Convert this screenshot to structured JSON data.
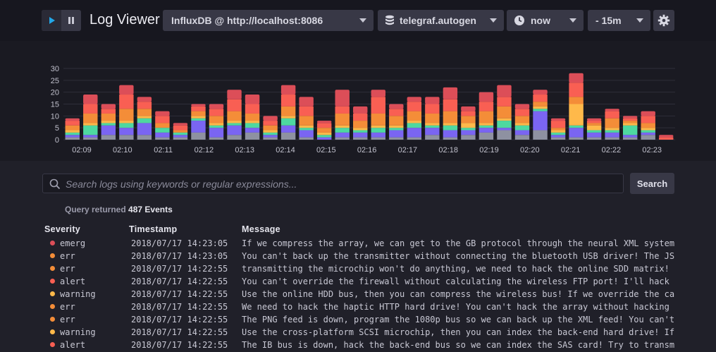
{
  "app": {
    "title": "Log Viewer"
  },
  "toolbar": {
    "source": "InfluxDB @ http://localhost:8086",
    "database": "telegraf.autogen",
    "time": "now",
    "range": "- 15m"
  },
  "colors": {
    "emerg": "#dc4e58",
    "alert": "#f95f53",
    "crit": "#f48d38",
    "err": "#f48d38",
    "warning": "#ffb94a",
    "notice": "#4ed8a0",
    "info": "#7a65f2",
    "debug": "#8e91a1"
  },
  "search": {
    "placeholder": "Search logs using keywords or regular expressions...",
    "button": "Search"
  },
  "summary": {
    "prefix": "Query returned",
    "count": "487 Events"
  },
  "table": {
    "headers": {
      "severity": "Severity",
      "timestamp": "Timestamp",
      "message": "Message"
    },
    "rows": [
      {
        "severity": "emerg",
        "timestamp": "2018/07/17 14:23:05",
        "message": "If we compress the array, we can get to the GB protocol through the neural XML system"
      },
      {
        "severity": "err",
        "timestamp": "2018/07/17 14:23:05",
        "message": "You can't back up the transmitter without connecting the bluetooth USB driver! The JSON"
      },
      {
        "severity": "err",
        "timestamp": "2018/07/17 14:22:55",
        "message": "transmitting the microchip won't do anything, we need to hack the online SDD matrix! If"
      },
      {
        "severity": "alert",
        "timestamp": "2018/07/17 14:22:55",
        "message": "You can't override the firewall without calculating the wireless FTP port! I'll hack the"
      },
      {
        "severity": "warning",
        "timestamp": "2018/07/17 14:22:55",
        "message": "Use the online HDD bus, then you can compress the wireless bus! If we override the capacitor"
      },
      {
        "severity": "err",
        "timestamp": "2018/07/17 14:22:55",
        "message": "We need to hack the haptic HTTP hard drive! You can't hack the array without hacking the"
      },
      {
        "severity": "err",
        "timestamp": "2018/07/17 14:22:55",
        "message": "The PNG feed is down, program the 1080p bus so we can back up the XML feed! You can't"
      },
      {
        "severity": "warning",
        "timestamp": "2018/07/17 14:22:55",
        "message": "Use the cross-platform SCSI microchip, then you can index the back-end hard drive! If we"
      },
      {
        "severity": "alert",
        "timestamp": "2018/07/17 14:22:55",
        "message": "The IB bus is down, hack the back-end bus so we can index the SAS card! Try to transmit"
      }
    ]
  },
  "chart_data": {
    "type": "bar",
    "stacked": true,
    "ylim": [
      0,
      30
    ],
    "yticks": [
      0,
      5,
      10,
      15,
      20,
      25,
      30
    ],
    "xticks": [
      "02:09",
      "02:10",
      "02:11",
      "02:12",
      "02:13",
      "02:14",
      "02:15",
      "02:16",
      "02:17",
      "02:18",
      "02:19",
      "02:20",
      "02:21",
      "02:22",
      "02:23"
    ],
    "series_order": [
      "debug",
      "info",
      "notice",
      "warning",
      "err",
      "alert",
      "emerg"
    ],
    "bars": [
      [
        1,
        1,
        1,
        1,
        2,
        2,
        1
      ],
      [
        1,
        1,
        4,
        1,
        4,
        4,
        4
      ],
      [
        2,
        4,
        1,
        1,
        3,
        2,
        2
      ],
      [
        2,
        3,
        2,
        1,
        5,
        6,
        4
      ],
      [
        2,
        5,
        2,
        1,
        3,
        3,
        2
      ],
      [
        1,
        2,
        2,
        0,
        2,
        3,
        2
      ],
      [
        1,
        1,
        1,
        0,
        1,
        2,
        1
      ],
      [
        3,
        5,
        1,
        1,
        2,
        2,
        1
      ],
      [
        1,
        4,
        1,
        1,
        3,
        3,
        2
      ],
      [
        2,
        4,
        1,
        1,
        4,
        5,
        4
      ],
      [
        3,
        2,
        2,
        1,
        3,
        4,
        4
      ],
      [
        1,
        1,
        1,
        1,
        2,
        2,
        2
      ],
      [
        3,
        3,
        3,
        1,
        4,
        5,
        4
      ],
      [
        1,
        3,
        1,
        1,
        4,
        4,
        4
      ],
      [
        0,
        1,
        1,
        1,
        2,
        2,
        1
      ],
      [
        1,
        2,
        2,
        1,
        5,
        3,
        7
      ],
      [
        1,
        2,
        1,
        1,
        3,
        3,
        3
      ],
      [
        1,
        2,
        2,
        1,
        5,
        7,
        3
      ],
      [
        1,
        3,
        1,
        1,
        4,
        3,
        2
      ],
      [
        1,
        4,
        2,
        1,
        4,
        4,
        2
      ],
      [
        2,
        3,
        1,
        1,
        4,
        4,
        3
      ],
      [
        1,
        3,
        2,
        1,
        5,
        5,
        5
      ],
      [
        2,
        2,
        1,
        2,
        3,
        2,
        2
      ],
      [
        3,
        2,
        1,
        1,
        5,
        4,
        4
      ],
      [
        4,
        1,
        3,
        1,
        5,
        4,
        5
      ],
      [
        2,
        2,
        2,
        1,
        3,
        3,
        2
      ],
      [
        4,
        8,
        1,
        1,
        2,
        3,
        2
      ],
      [
        1,
        1,
        1,
        1,
        1,
        3,
        1
      ],
      [
        1,
        4,
        1,
        9,
        3,
        6,
        4
      ],
      [
        1,
        2,
        1,
        2,
        1,
        1,
        1
      ],
      [
        1,
        2,
        1,
        1,
        4,
        3,
        1
      ],
      [
        1,
        1,
        4,
        1,
        1,
        1,
        1
      ],
      [
        2,
        1,
        1,
        1,
        2,
        3,
        2
      ],
      [
        0,
        0,
        0,
        0,
        0,
        1,
        1
      ]
    ]
  }
}
